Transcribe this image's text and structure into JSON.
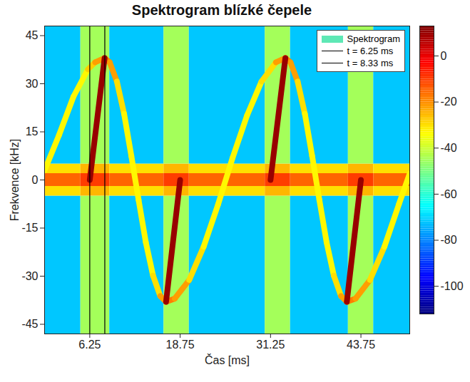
{
  "chart_data": {
    "type": "spectrogram",
    "title": "Spektrogram blízké čepele",
    "xlabel": "Čas [ms]",
    "ylabel": "Frekvence [kHz]",
    "xlim": [
      0,
      50.5
    ],
    "ylim": [
      -48,
      48
    ],
    "xticks": [
      6.25,
      18.75,
      31.25,
      43.75
    ],
    "yticks": [
      -45,
      -30,
      -15,
      0,
      15,
      30,
      45
    ],
    "legend": "upper right",
    "cells": {
      "x_edges": [
        0,
        5.0,
        9.0,
        16.5,
        20.0,
        30.5,
        34.0,
        42.0,
        45.5,
        50.5
      ],
      "y_edges": [
        -48,
        -5,
        -2,
        2,
        5,
        48
      ],
      "values": [
        [
          -72,
          -45,
          -72,
          -45,
          -72,
          -45,
          -72,
          -45,
          -72
        ],
        [
          -30,
          -25,
          -30,
          -25,
          -30,
          -25,
          -30,
          -25,
          -30
        ],
        [
          -15,
          -10,
          -15,
          -10,
          -15,
          -10,
          -15,
          -10,
          -15
        ],
        [
          -30,
          -25,
          -30,
          -25,
          -30,
          -25,
          -30,
          -25,
          -30
        ],
        [
          -72,
          -45,
          -72,
          -45,
          -72,
          -45,
          -72,
          -45,
          -72
        ]
      ]
    },
    "colorbar": {
      "lim": [
        -112,
        13
      ],
      "ticks": [
        -100,
        -80,
        -60,
        -40,
        -20,
        0
      ]
    },
    "series": [
      {
        "name": "Spektrogram",
        "color": "#5ee8b5",
        "type": "spectrogram",
        "traces": [
          {
            "t": [
              0,
              2,
              4,
              6,
              7,
              8.3,
              9,
              10,
              11,
              12,
              13,
              14,
              15,
              16,
              16.8,
              18,
              20,
              22,
              24,
              26,
              28,
              30,
              32,
              33.3,
              34,
              35,
              36,
              37,
              38,
              39,
              40,
              41,
              41.8,
              43,
              45,
              47,
              49,
              50.5
            ],
            "f": [
              3,
              14,
              26.0,
              34.5,
              36.7,
              38,
              36.7,
              30.7,
              20.6,
              7.5,
              -6.2,
              -19.4,
              -29.8,
              -36.2,
              -38,
              -37.0,
              -31.2,
              -20.8,
              -7.6,
              6.9,
              20.1,
              30.7,
              36.7,
              38,
              36.7,
              30.7,
              20.6,
              7.5,
              -6.2,
              -19.4,
              -29.8,
              -36.2,
              -38,
              -37.0,
              -31.2,
              -20.8,
              -7.6,
              2
            ],
            "level": [
              -33,
              -33,
              -33,
              -28,
              -22,
              -18,
              -22,
              -30,
              -33,
              -33,
              -33,
              -33,
              -30,
              -22,
              -18,
              -22,
              -30,
              -33,
              -33,
              -33,
              -33,
              -30,
              -22,
              -18,
              -22,
              -30,
              -33,
              -33,
              -33,
              -33,
              -30,
              -22,
              -18,
              -22,
              -30,
              -33,
              -33,
              -33
            ]
          },
          {
            "t": [
              6.25,
              8.3
            ],
            "f": [
              0,
              38
            ],
            "level": [
              10,
              10
            ]
          },
          {
            "t": [
              16.8,
              18.75
            ],
            "f": [
              -38,
              0
            ],
            "level": [
              10,
              10
            ]
          },
          {
            "t": [
              31.25,
              33.3
            ],
            "f": [
              0,
              38
            ],
            "level": [
              10,
              10
            ]
          },
          {
            "t": [
              41.8,
              43.75
            ],
            "f": [
              -38,
              0
            ],
            "level": [
              10,
              10
            ]
          }
        ]
      },
      {
        "name": "t = 6.25 ms",
        "color": "#000000",
        "type": "vline",
        "x": 6.25
      },
      {
        "name": "t = 8.33 ms",
        "color": "#000000",
        "type": "vline",
        "x": 8.33
      }
    ]
  }
}
